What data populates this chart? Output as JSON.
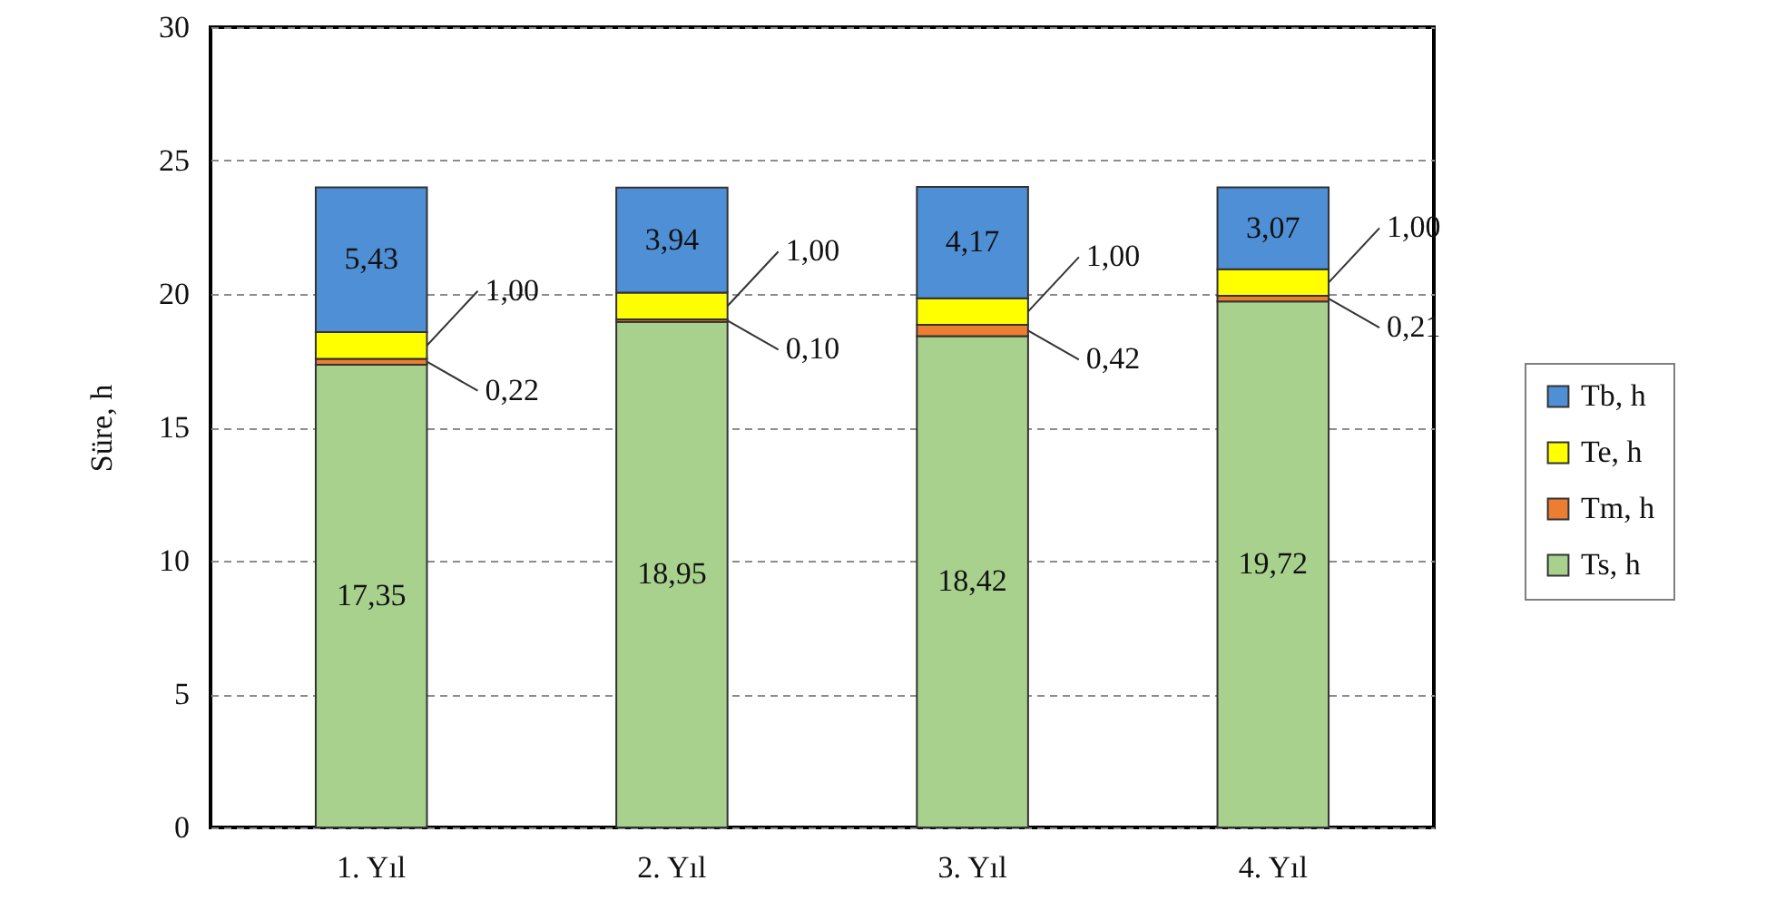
{
  "chart_data": {
    "type": "bar",
    "stacked": true,
    "ylabel": "Süre, h",
    "categories": [
      "1. Yıl",
      "2. Yıl",
      "3. Yıl",
      "4. Yıl"
    ],
    "ylim": [
      0,
      30
    ],
    "yticks": [
      0,
      5,
      10,
      15,
      20,
      25,
      30
    ],
    "grid": "y",
    "legend": "right",
    "series": [
      {
        "name": "Ts, h",
        "color": "#a9d18e",
        "values": [
          17.35,
          18.95,
          18.42,
          19.72
        ],
        "value_labels": [
          "17,35",
          "18,95",
          "18,42",
          "19,72"
        ]
      },
      {
        "name": "Tm, h",
        "color": "#ed7d31",
        "values": [
          0.22,
          0.1,
          0.42,
          0.21
        ],
        "value_labels": [
          "0,22",
          "0,10",
          "0,42",
          "0,21"
        ]
      },
      {
        "name": "Te, h",
        "color": "#ffff00",
        "values": [
          1.0,
          1.0,
          1.0,
          1.0
        ],
        "value_labels": [
          "1,00",
          "1,00",
          "1,00",
          "1,00"
        ]
      },
      {
        "name": "Tb, h",
        "color": "#4f8fd6",
        "values": [
          5.43,
          3.94,
          4.17,
          3.07
        ],
        "value_labels": [
          "5,43",
          "3,94",
          "4,17",
          "3,07"
        ]
      }
    ]
  }
}
